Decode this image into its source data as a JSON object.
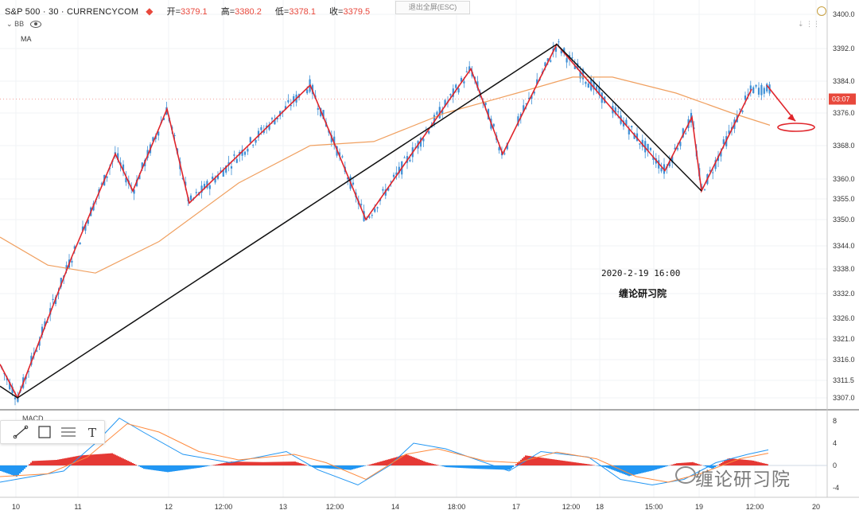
{
  "legend": {
    "symbol": "S&P 500 · 30 · CURRENCYCOM",
    "open_label": "开",
    "open": "3379.1",
    "high_label": "高",
    "high": "3380.2",
    "low_label": "低",
    "low": "3378.1",
    "close_label": "收",
    "close": "3379.5",
    "indicator_bb": "BB",
    "indicator_ma": "MA"
  },
  "toolbar": {
    "exit_fullscreen": "退出全屏(ESC)"
  },
  "annotation": {
    "timestamp": "2020-2-19   16:00",
    "watermark": "缠论研习院"
  },
  "brand": {
    "text": "缠论研习院"
  },
  "price_tag": "03:07",
  "macd_label": "MACD",
  "colors": {
    "up": "#3d8fd6",
    "down": "#3d8fd6",
    "segment": "#e0252b",
    "trend": "#111111",
    "ma": "#f0a060",
    "hist_pos": "#e53935",
    "hist_neg": "#2196f3"
  },
  "chart_data": {
    "type": "candlestick",
    "main": {
      "y_ticks": [
        3400.0,
        3392.0,
        3384.0,
        3376.0,
        3368.0,
        3360.0,
        3355.0,
        3350.0,
        3344.0,
        3338.0,
        3332.0,
        3326.0,
        3321.0,
        3316.0,
        3311.5,
        3307.0
      ],
      "x_ticks": [
        "10",
        "11",
        "12",
        "12:00",
        "13",
        "12:00",
        "14",
        "18:00",
        "17",
        "12:00",
        "18",
        "15:00",
        "19",
        "12:00",
        "20"
      ],
      "current_price": 3379.5,
      "red_segment_points": [
        [
          0,
          3315
        ],
        [
          22,
          3307
        ],
        [
          90,
          3341
        ],
        [
          145,
          3366
        ],
        [
          167,
          3357
        ],
        [
          210,
          3377
        ],
        [
          238,
          3354
        ],
        [
          390,
          3383
        ],
        [
          460,
          3350
        ],
        [
          592,
          3387
        ],
        [
          632,
          3366
        ],
        [
          700,
          3393
        ],
        [
          836,
          3362
        ],
        [
          870,
          3375
        ],
        [
          882,
          3357
        ],
        [
          945,
          3382
        ]
      ],
      "black_trend_points": [
        [
          0,
          3310
        ],
        [
          22,
          3307
        ],
        [
          700,
          3393
        ],
        [
          882,
          3357
        ]
      ],
      "annotation_arrow": {
        "from": [
          964,
          3383
        ],
        "to": [
          1000,
          3374
        ]
      }
    },
    "macd": {
      "y_ticks": [
        8,
        4,
        0,
        -4
      ]
    }
  }
}
